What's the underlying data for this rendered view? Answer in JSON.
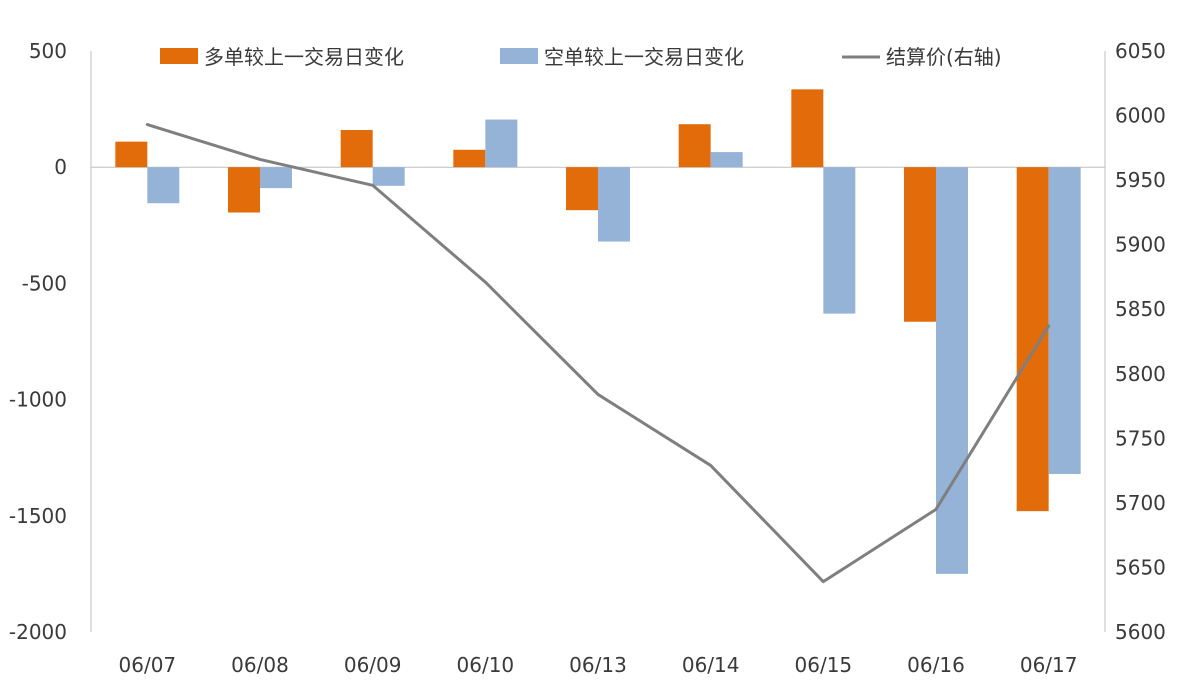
{
  "chart_data": {
    "type": "bar",
    "categories": [
      "06/07",
      "06/08",
      "06/09",
      "06/10",
      "06/13",
      "06/14",
      "06/15",
      "06/16",
      "06/17"
    ],
    "series": [
      {
        "name": "多单较上一交易日变化",
        "type": "bar",
        "axis": "left",
        "color": "#E36C0A",
        "values": [
          110,
          -195,
          160,
          75,
          -185,
          185,
          335,
          -665,
          -1480
        ]
      },
      {
        "name": "空单较上一交易日变化",
        "type": "bar",
        "axis": "left",
        "color": "#95B3D7",
        "values": [
          -155,
          -90,
          -80,
          205,
          -320,
          65,
          -630,
          -1750,
          -1320
        ]
      },
      {
        "name": "结算价(右轴)",
        "type": "line",
        "axis": "right",
        "color": "#7F7F7F",
        "values": [
          5993,
          5966,
          5946,
          5871,
          5784,
          5729,
          5639,
          5695,
          5837
        ]
      }
    ],
    "left_axis": {
      "ylim": [
        -2000,
        500
      ],
      "ticks": [
        500,
        0,
        -500,
        -1000,
        -1500,
        -2000
      ],
      "tick_labels": [
        "500",
        "0",
        "-500",
        "-1000",
        "-1500",
        "-2000"
      ]
    },
    "right_axis": {
      "ylim": [
        5600,
        6050
      ],
      "ticks": [
        6050,
        6000,
        5950,
        5900,
        5850,
        5800,
        5750,
        5700,
        5650,
        5600
      ],
      "tick_labels": [
        "6050",
        "6000",
        "5950",
        "5900",
        "5850",
        "5800",
        "5750",
        "5700",
        "5650",
        "5600"
      ]
    },
    "legend_position": "top",
    "grid": false
  }
}
